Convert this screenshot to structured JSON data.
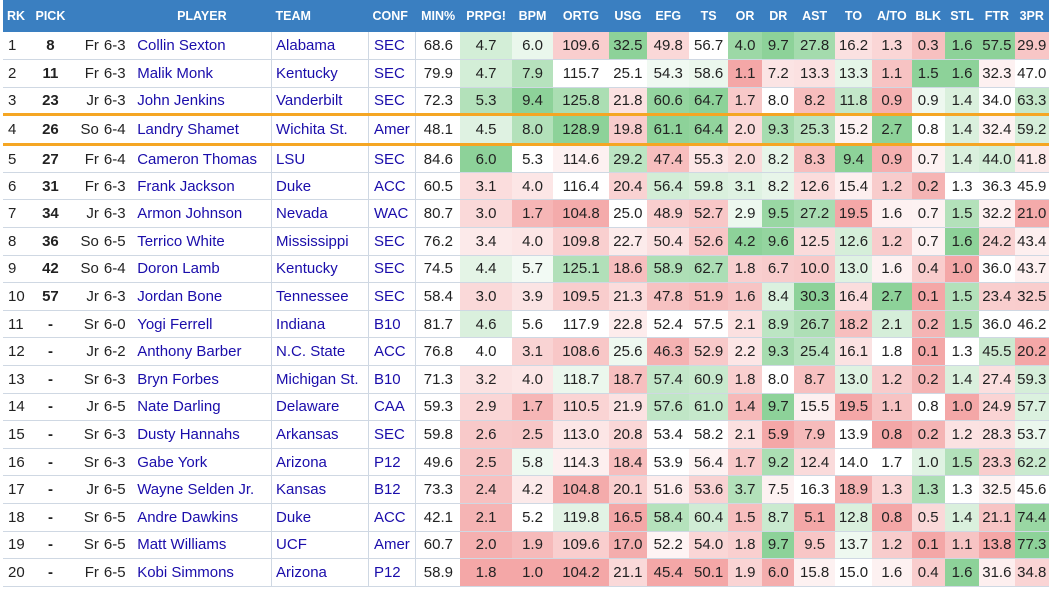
{
  "columns": [
    "RK",
    "PICK",
    "PLAYER",
    "TEAM",
    "CONF",
    "MIN%",
    "PRPG!",
    "BPM",
    "ORTG",
    "USG",
    "EFG",
    "TS",
    "OR",
    "DR",
    "AST",
    "TO",
    "A/TO",
    "BLK",
    "STL",
    "FTR",
    "3PR"
  ],
  "colors": {
    "header_bg": "#3a7fc1",
    "highlight_border": "#f5a623",
    "link": "#1a0dab",
    "good": "#5dbf6d",
    "bad": "#ef8282"
  },
  "rows": [
    {
      "rk": "1",
      "pick": "8",
      "cl": "Fr",
      "ht": "6-3",
      "player": "Collin Sexton",
      "team": "Alabama",
      "conf": "SEC",
      "stats": [
        "68.6",
        "4.7",
        "6.0",
        "109.6",
        "32.5",
        "49.8",
        "56.7",
        "4.0",
        "9.7",
        "27.8",
        "16.2",
        "1.3",
        "0.3",
        "1.6",
        "57.5",
        "29.9"
      ]
    },
    {
      "rk": "2",
      "pick": "11",
      "cl": "Fr",
      "ht": "6-3",
      "player": "Malik Monk",
      "team": "Kentucky",
      "conf": "SEC",
      "stats": [
        "79.9",
        "4.7",
        "7.9",
        "115.7",
        "25.1",
        "54.3",
        "58.6",
        "1.1",
        "7.2",
        "13.3",
        "13.3",
        "1.1",
        "1.5",
        "1.6",
        "32.3",
        "47.0"
      ]
    },
    {
      "rk": "3",
      "pick": "23",
      "cl": "Jr",
      "ht": "6-3",
      "player": "John Jenkins",
      "team": "Vanderbilt",
      "conf": "SEC",
      "stats": [
        "72.3",
        "5.3",
        "9.4",
        "125.8",
        "21.8",
        "60.6",
        "64.7",
        "1.7",
        "8.0",
        "8.2",
        "11.8",
        "0.9",
        "0.9",
        "1.4",
        "34.0",
        "63.3"
      ]
    },
    {
      "rk": "4",
      "pick": "26",
      "cl": "So",
      "ht": "6-4",
      "player": "Landry Shamet",
      "team": "Wichita St.",
      "conf": "Amer",
      "stats": [
        "48.1",
        "4.5",
        "8.0",
        "128.9",
        "19.8",
        "61.1",
        "64.4",
        "2.0",
        "9.3",
        "25.3",
        "15.2",
        "2.7",
        "0.8",
        "1.4",
        "32.4",
        "59.2"
      ],
      "highlight": true
    },
    {
      "rk": "5",
      "pick": "27",
      "cl": "Fr",
      "ht": "6-4",
      "player": "Cameron Thomas",
      "team": "LSU",
      "conf": "SEC",
      "stats": [
        "84.6",
        "6.0",
        "5.3",
        "114.6",
        "29.2",
        "47.4",
        "55.3",
        "2.0",
        "8.2",
        "8.3",
        "9.4",
        "0.9",
        "0.7",
        "1.4",
        "44.0",
        "41.8"
      ]
    },
    {
      "rk": "6",
      "pick": "31",
      "cl": "Fr",
      "ht": "6-3",
      "player": "Frank Jackson",
      "team": "Duke",
      "conf": "ACC",
      "stats": [
        "60.5",
        "3.1",
        "4.0",
        "116.4",
        "20.4",
        "56.4",
        "59.8",
        "3.1",
        "8.2",
        "12.6",
        "15.4",
        "1.2",
        "0.2",
        "1.3",
        "36.3",
        "45.9"
      ]
    },
    {
      "rk": "7",
      "pick": "34",
      "cl": "Jr",
      "ht": "6-3",
      "player": "Armon Johnson",
      "team": "Nevada",
      "conf": "WAC",
      "stats": [
        "80.7",
        "3.0",
        "1.7",
        "104.8",
        "25.0",
        "48.9",
        "52.7",
        "2.9",
        "9.5",
        "27.2",
        "19.5",
        "1.6",
        "0.7",
        "1.5",
        "32.2",
        "21.0"
      ]
    },
    {
      "rk": "8",
      "pick": "36",
      "cl": "So",
      "ht": "6-5",
      "player": "Terrico White",
      "team": "Mississippi",
      "conf": "SEC",
      "stats": [
        "76.2",
        "3.4",
        "4.0",
        "109.8",
        "22.7",
        "50.4",
        "52.6",
        "4.2",
        "9.6",
        "12.5",
        "12.6",
        "1.2",
        "0.7",
        "1.6",
        "24.2",
        "43.4"
      ]
    },
    {
      "rk": "9",
      "pick": "42",
      "cl": "So",
      "ht": "6-4",
      "player": "Doron Lamb",
      "team": "Kentucky",
      "conf": "SEC",
      "stats": [
        "74.5",
        "4.4",
        "5.7",
        "125.1",
        "18.6",
        "58.9",
        "62.7",
        "1.8",
        "6.7",
        "10.0",
        "13.0",
        "1.6",
        "0.4",
        "1.0",
        "36.0",
        "43.7"
      ]
    },
    {
      "rk": "10",
      "pick": "57",
      "cl": "Jr",
      "ht": "6-3",
      "player": "Jordan Bone",
      "team": "Tennessee",
      "conf": "SEC",
      "stats": [
        "58.4",
        "3.0",
        "3.9",
        "109.5",
        "21.3",
        "47.8",
        "51.9",
        "1.6",
        "8.4",
        "30.3",
        "16.4",
        "2.7",
        "0.1",
        "1.5",
        "23.4",
        "32.5"
      ]
    },
    {
      "rk": "11",
      "pick": "-",
      "cl": "Sr",
      "ht": "6-0",
      "player": "Yogi Ferrell",
      "team": "Indiana",
      "conf": "B10",
      "stats": [
        "81.7",
        "4.6",
        "5.6",
        "117.9",
        "22.8",
        "52.4",
        "57.5",
        "2.1",
        "8.9",
        "26.7",
        "18.2",
        "2.1",
        "0.2",
        "1.5",
        "36.0",
        "46.2"
      ]
    },
    {
      "rk": "12",
      "pick": "-",
      "cl": "Jr",
      "ht": "6-2",
      "player": "Anthony Barber",
      "team": "N.C. State",
      "conf": "ACC",
      "stats": [
        "76.8",
        "4.0",
        "3.1",
        "108.6",
        "25.6",
        "46.3",
        "52.9",
        "2.2",
        "9.3",
        "25.4",
        "16.1",
        "1.8",
        "0.1",
        "1.3",
        "45.5",
        "20.2"
      ]
    },
    {
      "rk": "13",
      "pick": "-",
      "cl": "Sr",
      "ht": "6-3",
      "player": "Bryn Forbes",
      "team": "Michigan St.",
      "conf": "B10",
      "stats": [
        "71.3",
        "3.2",
        "4.0",
        "118.7",
        "18.7",
        "57.4",
        "60.9",
        "1.8",
        "8.0",
        "8.7",
        "13.0",
        "1.2",
        "0.2",
        "1.4",
        "27.4",
        "59.3"
      ]
    },
    {
      "rk": "14",
      "pick": "-",
      "cl": "Jr",
      "ht": "6-5",
      "player": "Nate Darling",
      "team": "Delaware",
      "conf": "CAA",
      "stats": [
        "59.3",
        "2.9",
        "1.7",
        "110.5",
        "21.9",
        "57.6",
        "61.0",
        "1.4",
        "9.7",
        "15.5",
        "19.5",
        "1.1",
        "0.8",
        "1.0",
        "24.9",
        "57.7"
      ]
    },
    {
      "rk": "15",
      "pick": "-",
      "cl": "Sr",
      "ht": "6-3",
      "player": "Dusty Hannahs",
      "team": "Arkansas",
      "conf": "SEC",
      "stats": [
        "59.8",
        "2.6",
        "2.5",
        "113.0",
        "20.8",
        "53.4",
        "58.2",
        "2.1",
        "5.9",
        "7.9",
        "13.9",
        "0.8",
        "0.2",
        "1.2",
        "28.3",
        "53.7"
      ]
    },
    {
      "rk": "16",
      "pick": "-",
      "cl": "Sr",
      "ht": "6-3",
      "player": "Gabe York",
      "team": "Arizona",
      "conf": "P12",
      "stats": [
        "49.6",
        "2.5",
        "5.8",
        "114.3",
        "18.4",
        "53.9",
        "56.4",
        "1.7",
        "9.2",
        "12.4",
        "14.0",
        "1.7",
        "1.0",
        "1.5",
        "23.3",
        "62.2"
      ]
    },
    {
      "rk": "17",
      "pick": "-",
      "cl": "Jr",
      "ht": "6-5",
      "player": "Wayne Selden Jr.",
      "team": "Kansas",
      "conf": "B12",
      "stats": [
        "73.3",
        "2.4",
        "4.2",
        "104.8",
        "20.1",
        "51.6",
        "53.6",
        "3.7",
        "7.5",
        "16.3",
        "18.9",
        "1.3",
        "1.3",
        "1.3",
        "32.5",
        "45.6"
      ]
    },
    {
      "rk": "18",
      "pick": "-",
      "cl": "Sr",
      "ht": "6-5",
      "player": "Andre Dawkins",
      "team": "Duke",
      "conf": "ACC",
      "stats": [
        "42.1",
        "2.1",
        "5.2",
        "119.8",
        "16.5",
        "58.4",
        "60.4",
        "1.5",
        "8.7",
        "5.1",
        "12.8",
        "0.8",
        "0.5",
        "1.4",
        "21.1",
        "74.4"
      ]
    },
    {
      "rk": "19",
      "pick": "-",
      "cl": "Sr",
      "ht": "6-5",
      "player": "Matt Williams",
      "team": "UCF",
      "conf": "Amer",
      "stats": [
        "60.7",
        "2.0",
        "1.9",
        "109.6",
        "17.0",
        "52.2",
        "54.0",
        "1.8",
        "9.7",
        "9.5",
        "13.7",
        "1.2",
        "0.1",
        "1.1",
        "13.8",
        "77.3"
      ]
    },
    {
      "rk": "20",
      "pick": "-",
      "cl": "Fr",
      "ht": "6-5",
      "player": "Kobi Simmons",
      "team": "Arizona",
      "conf": "P12",
      "stats": [
        "58.9",
        "1.8",
        "1.0",
        "104.2",
        "21.1",
        "45.4",
        "50.1",
        "1.9",
        "6.0",
        "15.8",
        "15.0",
        "1.6",
        "0.4",
        "1.6",
        "31.6",
        "34.8"
      ]
    }
  ]
}
